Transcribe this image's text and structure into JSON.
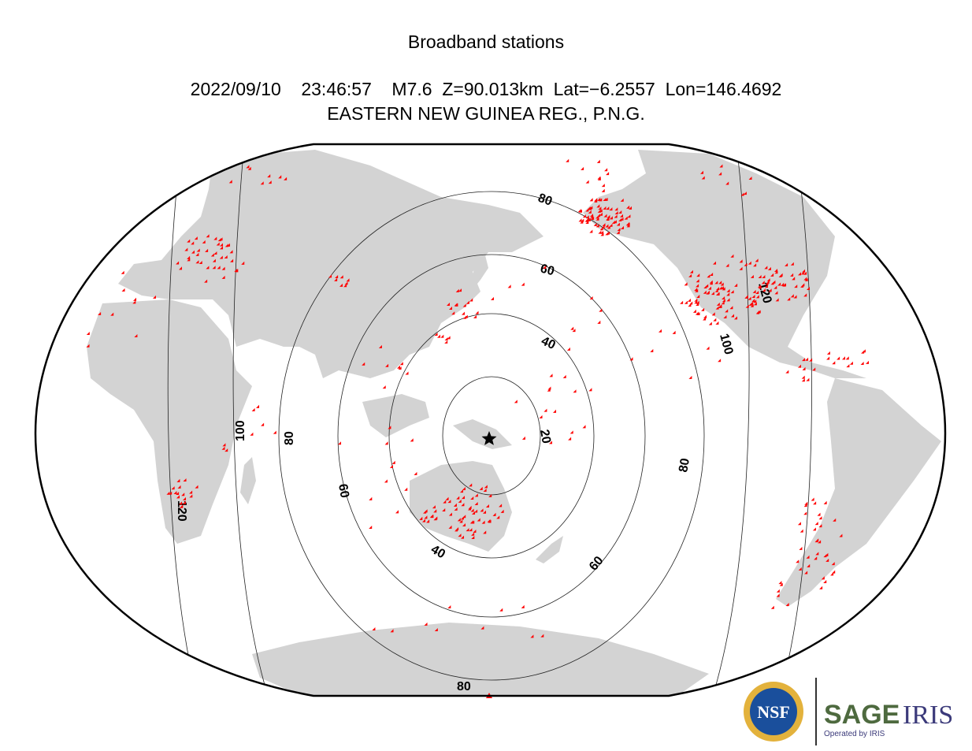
{
  "header": {
    "title": "Broadband stations",
    "event_line": "2022/09/10    23:46:57    M7.6  Z=90.013km  Lat=−6.2557  Lon=146.4692",
    "region": "EASTERN NEW GUINEA REG., P.N.G."
  },
  "map": {
    "projection": "elliptical world map centered on the Pacific",
    "land_color": "#d3d3d3",
    "station_color": "#ff0000",
    "epicenter_symbol": "star-icon",
    "contour_labels": [
      "20",
      "40",
      "60",
      "80",
      "100",
      "120"
    ]
  },
  "logos": {
    "nsf": "NSF",
    "sage": "SAGE",
    "iris": "IRIS",
    "operated_by": "Operated by IRIS",
    "sage_color": "#4e6a3f",
    "iris_color": "#3b3a7a",
    "nsf_color": "#1a4f9c"
  }
}
